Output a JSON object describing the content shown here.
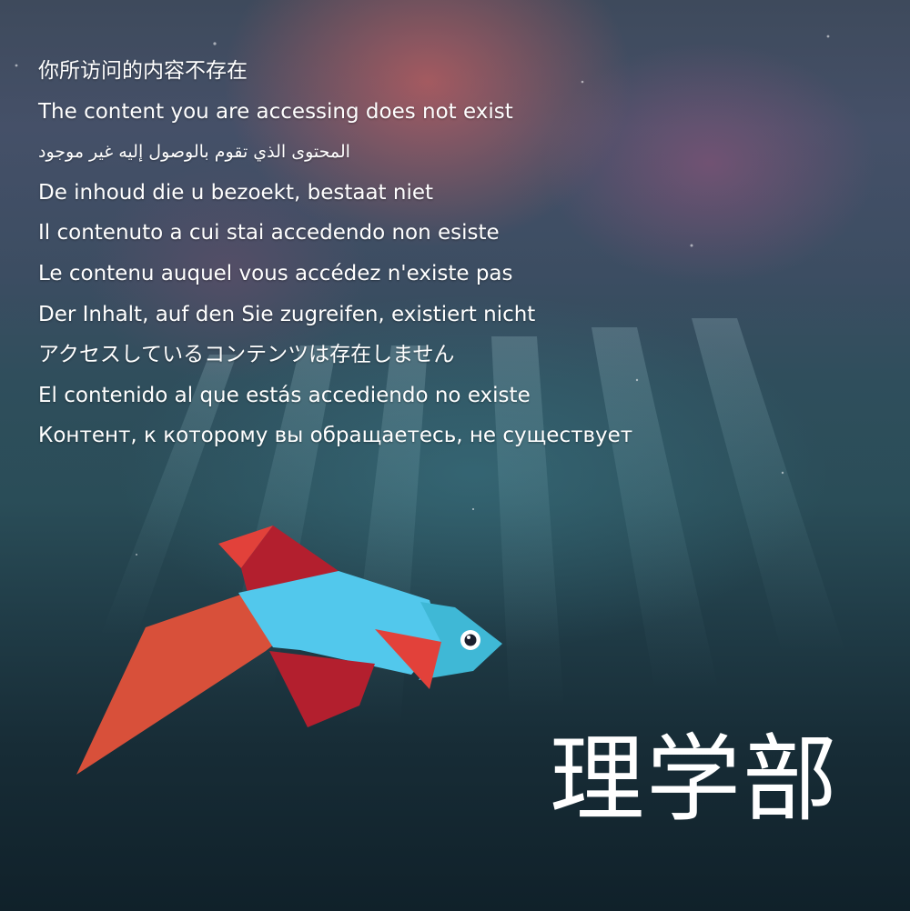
{
  "messages": [
    "你所访问的内容不存在",
    "The content you are accessing does not exist",
    "المحتوى الذي تقوم بالوصول إليه غير موجود",
    "De inhoud die u bezoekt, bestaat niet",
    "Il contenuto a cui stai accedendo non esiste",
    "Le contenu auquel vous accédez n'existe pas",
    "Der Inhalt, auf den Sie zugreifen, existiert nicht",
    "アクセスしているコンテンツは存在しません",
    "El contenido al que estás accediendo no existe",
    "Контент, к которому вы обращаетесь, не существует"
  ],
  "department_label": "理学部",
  "illustration": {
    "icon": "betta-fish-illustration",
    "colors": {
      "body": "#52c8ec",
      "head": "#3fb8d6",
      "fin_red": "#e2413a",
      "fin_dark_red": "#b31f2e",
      "tail_orange": "#d8503a"
    }
  },
  "background": {
    "theme": "underwater-sunrays",
    "colors": {
      "surface_pink": "#cd5f5f",
      "deep_water": "#10212a",
      "mid_water": "#2a4d58"
    }
  }
}
